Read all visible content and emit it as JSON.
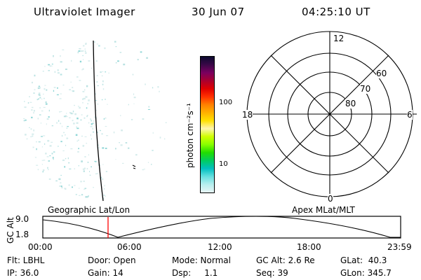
{
  "header": {
    "title": "Ultraviolet Imager",
    "date": "30 Jun 07",
    "time": "04:25:10 UT"
  },
  "colorbar": {
    "label": "photon cm⁻²s⁻¹",
    "ticks": [
      "100",
      "10"
    ],
    "colors": [
      "#0b0a2e",
      "#3a0848",
      "#7a0060",
      "#aa0030",
      "#e00000",
      "#ff3000",
      "#ff8000",
      "#ffb000",
      "#ffe000",
      "#fff5b0",
      "#d0ff00",
      "#88ff00",
      "#22dd00",
      "#00cc60",
      "#00c0c0",
      "#66e0e0",
      "#b8eeee",
      "#e8f6f6"
    ]
  },
  "polar": {
    "mlt_labels": {
      "top": "12",
      "left": "18",
      "right": "6",
      "bottom": "0"
    },
    "lat_labels": [
      "60",
      "70",
      "80"
    ]
  },
  "timeline": {
    "title_left": "Geographic Lat/Lon",
    "title_right": "Apex MLat/MLT",
    "axis_label": "GC Alt",
    "y_ticks": [
      "9.0",
      "1.8"
    ],
    "x_ticks": [
      "00:00",
      "06:00",
      "12:00",
      "18:00",
      "23:59"
    ],
    "current_marker_color": "#ff0000"
  },
  "info": {
    "flt": "Flt: LBHL",
    "ip": "IP: 36.0",
    "door": "Door: Open",
    "gain": "Gain: 14",
    "mode": "Mode: Normal",
    "dsp": "Dsp:     1.1",
    "gcalt": "GC Alt: 2.6 Re",
    "seq": "Seq: 39",
    "glat": "GLat:  40.3",
    "glon": "GLon: 345.7"
  }
}
